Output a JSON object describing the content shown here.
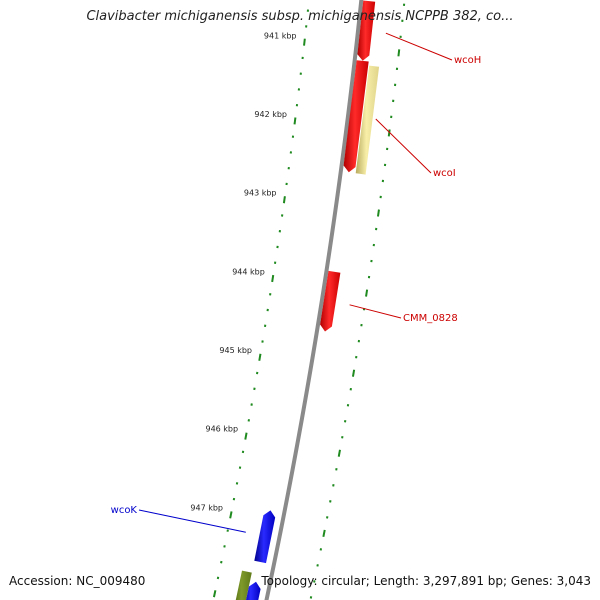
{
  "title": "Clavibacter michiganensis subsp. michiganensis NCPPB 382, co...",
  "footer": {
    "accession": "Accession: NC_009480",
    "topology": "Topology: circular; Length: 3,297,891 bp; Genes: 3,043"
  },
  "colors": {
    "backbone": "#8a8a8a",
    "ticks": "#1f8a1f",
    "forward_gene": "#ff0000",
    "reverse_gene": "#0000ff",
    "other_feature": "#f3e79a",
    "olive_feature": "#6e8a1e",
    "label_forward": "#cc0000",
    "label_reverse": "#0000cc"
  },
  "ticks": [
    {
      "kbp": 941,
      "label": "941 kbp"
    },
    {
      "kbp": 942,
      "label": "942 kbp"
    },
    {
      "kbp": 943,
      "label": "943 kbp"
    },
    {
      "kbp": 944,
      "label": "944 kbp"
    },
    {
      "kbp": 945,
      "label": "945 kbp"
    },
    {
      "kbp": 946,
      "label": "946 kbp"
    },
    {
      "kbp": 947,
      "label": "947 kbp"
    }
  ],
  "features": [
    {
      "name": "wcoH",
      "start_kbp": 940.4,
      "end_kbp": 941.15,
      "strand": "+",
      "type": "gene",
      "label": "wcoH",
      "color": "#ff0000"
    },
    {
      "name": "wcoI",
      "start_kbp": 941.15,
      "end_kbp": 942.55,
      "strand": "+",
      "type": "gene",
      "label": "wcoI",
      "color": "#ff0000"
    },
    {
      "name": "wcoI-feature",
      "start_kbp": 941.2,
      "end_kbp": 942.55,
      "strand": "+",
      "type": "other",
      "label": "",
      "color": "#f3e79a"
    },
    {
      "name": "CMM_0828",
      "start_kbp": 943.8,
      "end_kbp": 944.55,
      "strand": "+",
      "type": "gene",
      "label": "CMM_0828",
      "color": "#ff0000"
    },
    {
      "name": "wcoK",
      "start_kbp": 946.85,
      "end_kbp": 947.5,
      "strand": "-",
      "type": "gene",
      "label": "wcoK",
      "color": "#0000ff"
    },
    {
      "name": "olive-feature",
      "start_kbp": 947.65,
      "end_kbp": 948.2,
      "strand": "-",
      "type": "other",
      "label": "",
      "color": "#6e8a1e"
    },
    {
      "name": "blue-gene-bottom",
      "start_kbp": 947.75,
      "end_kbp": 948.2,
      "strand": "-",
      "type": "gene",
      "label": "",
      "color": "#0000ff"
    }
  ]
}
